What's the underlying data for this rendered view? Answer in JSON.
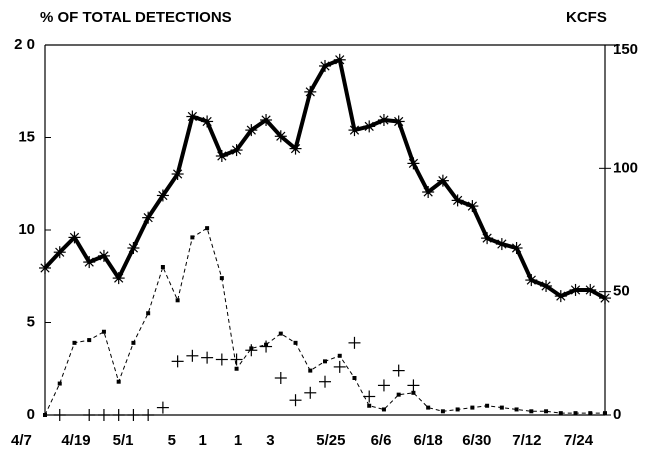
{
  "chart_data": {
    "type": "line",
    "title": "% OF TOTAL DETECTIONS",
    "y2_label": "KCFS",
    "xlim": [
      0,
      38
    ],
    "xticks": [
      {
        "value": -1.6,
        "label": "4/7"
      },
      {
        "value": 2.1,
        "label": "4/19"
      },
      {
        "value": 5.3,
        "label": "5/1"
      },
      {
        "value": 8.6,
        "label": "5"
      },
      {
        "value": 10.7,
        "label": "1"
      },
      {
        "value": 13.1,
        "label": "1"
      },
      {
        "value": 15.3,
        "label": "3"
      },
      {
        "value": 19.4,
        "label": "5/25"
      },
      {
        "value": 22.8,
        "label": "6/6"
      },
      {
        "value": 26,
        "label": "6/18"
      },
      {
        "value": 29.3,
        "label": "6/30"
      },
      {
        "value": 32.7,
        "label": "7/12"
      },
      {
        "value": 36.2,
        "label": "7/24"
      }
    ],
    "ylim": [
      0,
      20
    ],
    "yticks": [
      0,
      5,
      10,
      15,
      {
        "value": 20,
        "label": "2 0"
      }
    ],
    "y2lim": [
      0,
      150
    ],
    "y2ticks": [
      0,
      50,
      100,
      150
    ],
    "series": [
      {
        "axis": "y2",
        "color": "#000000",
        "style": "thick",
        "marker": "asterisk",
        "values": [
          59.6,
          66,
          72,
          62,
          64.5,
          55.5,
          67.7,
          80,
          89,
          97.7,
          121,
          119,
          105,
          107.4,
          115.5,
          119.6,
          113,
          108,
          131,
          141.5,
          144,
          115.5,
          117,
          119.6,
          119,
          102,
          90.4,
          95,
          87,
          84.7,
          71.7,
          69.3,
          67.7,
          54.7,
          52.3,
          48.2,
          50.7,
          50.7,
          47.4
        ]
      },
      {
        "axis": "y",
        "color": "#000000",
        "style": "dashed",
        "marker": "dot",
        "values": [
          0,
          1.7,
          3.9,
          4.05,
          4.5,
          1.8,
          3.9,
          5.5,
          8.0,
          6.2,
          9.6,
          10.1,
          7.4,
          2.5,
          3.6,
          3.8,
          4.4,
          3.9,
          2.4,
          2.9,
          3.2,
          2.0,
          0.5,
          0.3,
          1.1,
          1.2,
          0.4,
          0.2,
          0.3,
          0.4,
          0.5,
          0.4,
          0.3,
          0.2,
          0.2,
          0.1,
          0.1,
          0.1,
          0.1
        ]
      },
      {
        "axis": "y",
        "color": "#000000",
        "style": "none",
        "marker": "plus",
        "values": [
          null,
          0,
          null,
          0,
          0,
          0,
          0,
          0,
          0.4,
          2.9,
          3.2,
          3.1,
          3.0,
          3.0,
          3.5,
          3.7,
          2.0,
          0.8,
          1.2,
          1.8,
          2.6,
          3.9,
          1.0,
          1.6,
          2.4,
          1.6,
          null,
          null,
          null,
          null,
          null,
          null,
          null,
          null,
          null,
          null,
          null,
          null,
          null
        ]
      }
    ]
  }
}
